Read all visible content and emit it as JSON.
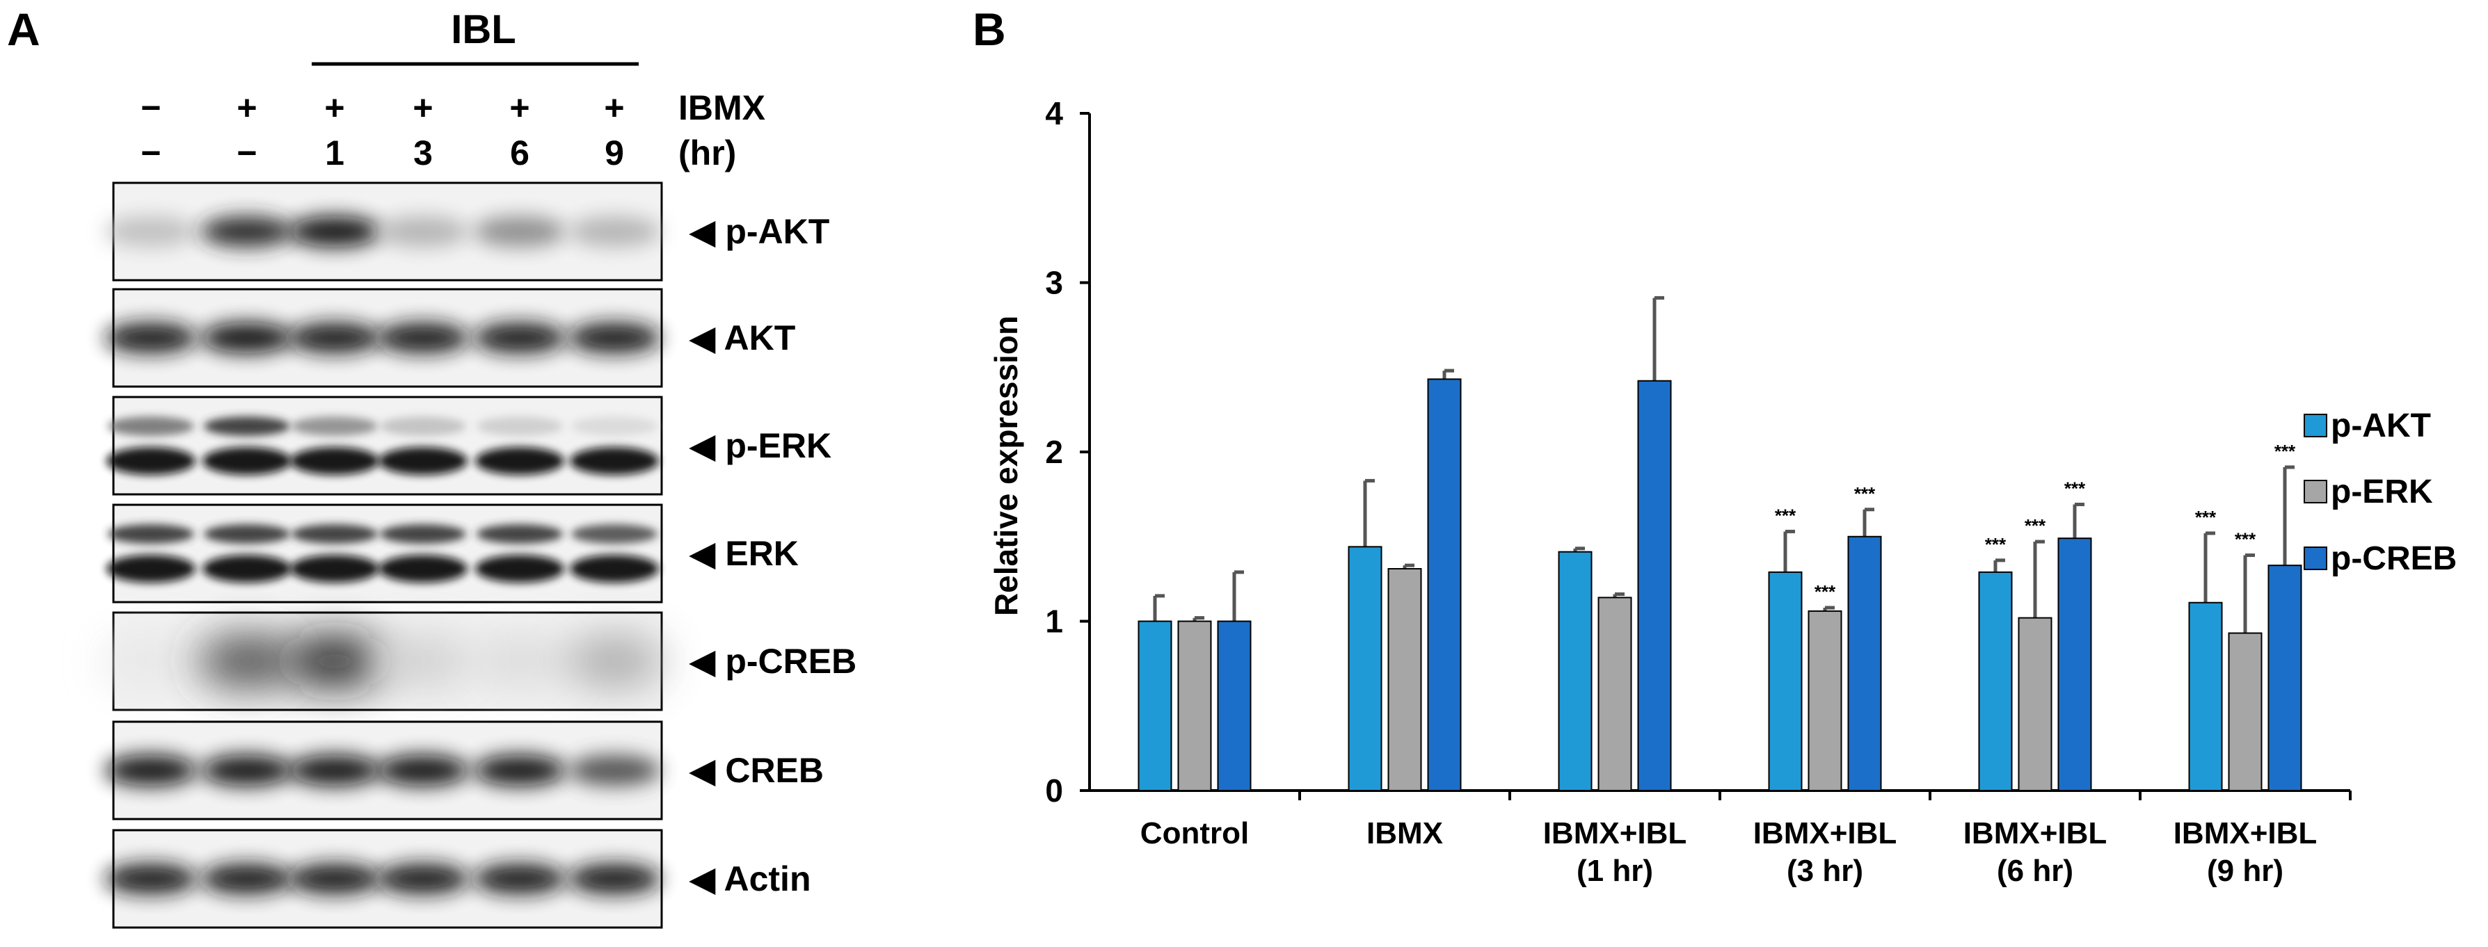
{
  "panel_a": {
    "label": "A",
    "ibl_label": "IBL",
    "row1_label": "IBMX",
    "row2_label": "(hr)",
    "lanes": [
      {
        "ibmx": "−",
        "hr": "−"
      },
      {
        "ibmx": "+",
        "hr": "−"
      },
      {
        "ibmx": "+",
        "hr": "1"
      },
      {
        "ibmx": "+",
        "hr": "3"
      },
      {
        "ibmx": "+",
        "hr": "6"
      },
      {
        "ibmx": "+",
        "hr": "9"
      }
    ],
    "blots": [
      {
        "label": "◀ p-AKT",
        "intensity": [
          0.25,
          0.85,
          0.95,
          0.3,
          0.45,
          0.3
        ],
        "double": false,
        "diffuse": false
      },
      {
        "label": "◀ AKT",
        "intensity": [
          0.9,
          0.95,
          0.9,
          0.9,
          0.9,
          0.9
        ],
        "double": false,
        "diffuse": false
      },
      {
        "label": "◀ p-ERK",
        "intensity": [
          0.55,
          0.8,
          0.45,
          0.25,
          0.2,
          0.15
        ],
        "double": true,
        "diffuse": false
      },
      {
        "label": "◀ ERK",
        "intensity": [
          0.8,
          0.8,
          0.8,
          0.8,
          0.8,
          0.7
        ],
        "double": true,
        "diffuse": false
      },
      {
        "label": "◀ p-CREB",
        "intensity": [
          0.1,
          0.75,
          0.9,
          0.2,
          0.15,
          0.35
        ],
        "double": false,
        "diffuse": true
      },
      {
        "label": "◀ CREB",
        "intensity": [
          0.95,
          0.95,
          0.95,
          0.95,
          0.95,
          0.7
        ],
        "double": false,
        "diffuse": false
      },
      {
        "label": "◀ Actin",
        "intensity": [
          0.9,
          0.9,
          0.9,
          0.9,
          0.9,
          0.9
        ],
        "double": false,
        "diffuse": false
      }
    ]
  },
  "panel_b": {
    "label": "B"
  },
  "chart_data": {
    "type": "bar",
    "title": "",
    "xlabel": "",
    "ylabel": "Relative expression",
    "ylim": [
      0,
      4
    ],
    "yticks": [
      "0",
      "1",
      "2",
      "3",
      "4"
    ],
    "categories": [
      [
        "Control"
      ],
      [
        "IBMX"
      ],
      [
        "IBMX+IBL",
        "(1 hr)"
      ],
      [
        "IBMX+IBL",
        "(3 hr)"
      ],
      [
        "IBMX+IBL",
        "(6 hr)"
      ],
      [
        "IBMX+IBL",
        "(9 hr)"
      ]
    ],
    "series": [
      {
        "name": "p-AKT",
        "color": "#1f9ad6",
        "values": [
          1.0,
          1.44,
          1.41,
          1.29,
          1.29,
          1.11
        ],
        "errors": [
          0.15,
          0.39,
          0.02,
          0.24,
          0.07,
          0.41
        ],
        "annotations": [
          "",
          "",
          "",
          "***",
          "***",
          "***"
        ]
      },
      {
        "name": "p-ERK",
        "color": "#a6a6a6",
        "values": [
          1.0,
          1.31,
          1.14,
          1.06,
          1.02,
          0.93
        ],
        "errors": [
          0.02,
          0.02,
          0.02,
          0.02,
          0.45,
          0.46
        ],
        "annotations": [
          "",
          "",
          "",
          "***",
          "***",
          "***"
        ]
      },
      {
        "name": "p-CREB",
        "color": "#1c6fc8",
        "values": [
          1.0,
          2.43,
          2.42,
          1.5,
          1.49,
          1.33
        ],
        "errors": [
          0.29,
          0.05,
          0.49,
          0.16,
          0.2,
          0.58
        ],
        "annotations": [
          "",
          "",
          "",
          "***",
          "***",
          "***"
        ]
      }
    ],
    "legend_position": "right"
  }
}
